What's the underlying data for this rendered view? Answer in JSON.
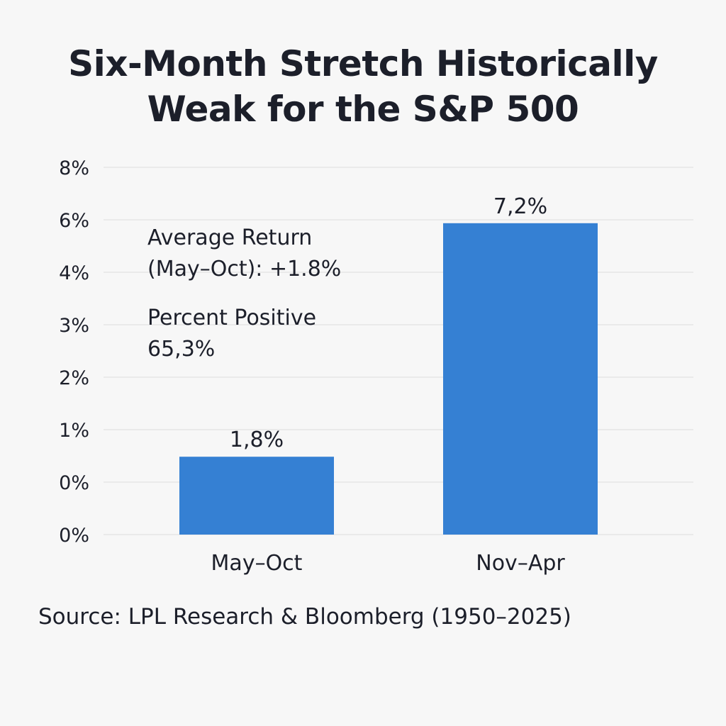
{
  "chart_data": {
    "type": "bar",
    "title_lines": [
      "Six-Month Stretch Historically",
      "Weak for the S&P 500"
    ],
    "categories": [
      "May–Oct",
      "Nov–Apr"
    ],
    "values": [
      1.8,
      7.2
    ],
    "data_labels": [
      "1,8%",
      "7,2%"
    ],
    "y_tick_labels": [
      "0%",
      "0%",
      "1%",
      "2%",
      "3%",
      "4%",
      "6%",
      "8%"
    ],
    "ylabel": "",
    "xlabel": "",
    "grid": true,
    "bar_color": "#3580d3",
    "grid_color": "#dcdcdc",
    "annotations": [
      {
        "heading": "Average Return",
        "value": "(May–Oct): +1.8%"
      },
      {
        "heading": "Percent Positive",
        "value": "65,3%"
      }
    ],
    "source": "Source: LPL Research & Bloomberg (1950–2025)"
  }
}
